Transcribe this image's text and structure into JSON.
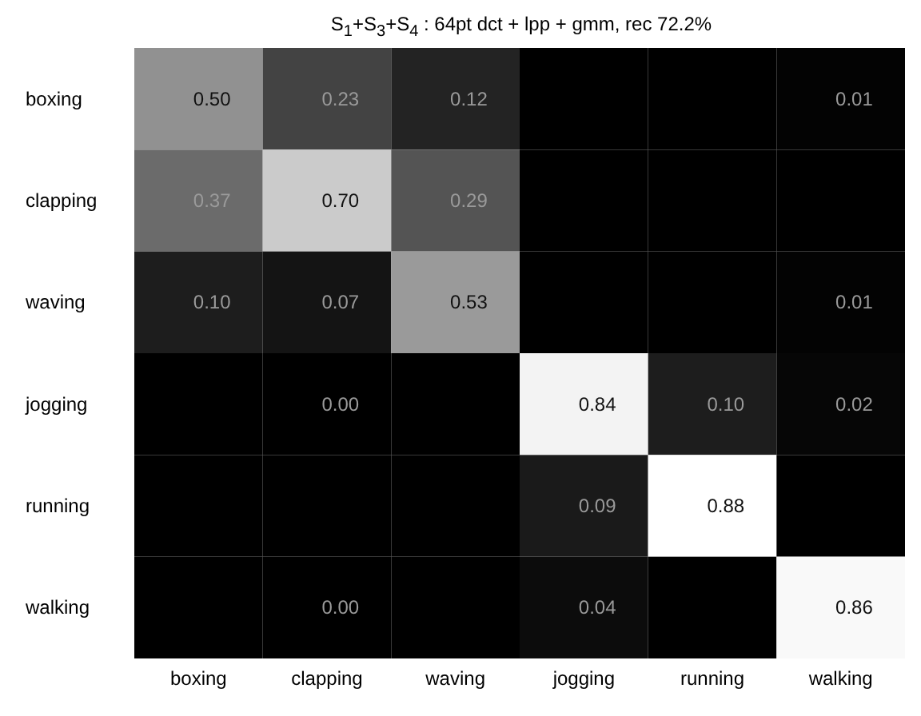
{
  "chart_data": {
    "type": "heatmap",
    "title": "S$_{1}$+S$_{3}$+S$_{4}$ : 64pt dct + lpp + gmm, rec 72.2%",
    "cell_labels": [
      [
        "0.50",
        "0.23",
        "0.12",
        null,
        null,
        "0.01"
      ],
      [
        "0.37",
        "0.70",
        "0.29",
        null,
        null,
        null
      ],
      [
        "0.10",
        "0.07",
        "0.53",
        null,
        null,
        "0.01"
      ],
      [
        null,
        "0.00",
        null,
        "0.84",
        "0.10",
        "0.02"
      ],
      [
        null,
        null,
        null,
        "0.09",
        "0.88",
        null
      ],
      [
        null,
        "0.00",
        null,
        "0.04",
        null,
        "0.86"
      ]
    ],
    "categories": [
      "boxing",
      "clapping",
      "waving",
      "jogging",
      "running",
      "walking"
    ],
    "y_categories": [
      "boxing",
      "clapping",
      "waving",
      "jogging",
      "running",
      "walking"
    ],
    "cells": [
      [
        0.5,
        0.23,
        0.12,
        null,
        null,
        0.01
      ],
      [
        0.37,
        0.7,
        0.29,
        null,
        null,
        null
      ],
      [
        0.1,
        0.07,
        0.53,
        null,
        null,
        0.01
      ],
      [
        null,
        0.0,
        null,
        0.84,
        0.1,
        0.02
      ],
      [
        null,
        null,
        null,
        0.09,
        0.88,
        null
      ],
      [
        null,
        0.0,
        null,
        0.04,
        null,
        0.86
      ]
    ]
  }
}
